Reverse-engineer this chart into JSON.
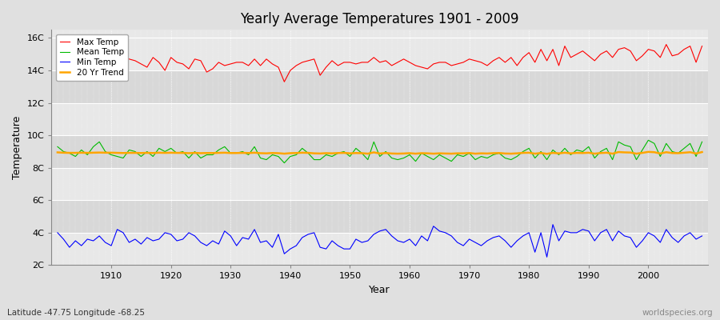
{
  "title": "Yearly Average Temperatures 1901 - 2009",
  "xlabel": "Year",
  "ylabel": "Temperature",
  "footnote_left": "Latitude -47.75 Longitude -68.25",
  "footnote_right": "worldspecies.org",
  "years_start": 1901,
  "years_end": 2009,
  "max_temp": [
    14.8,
    14.4,
    15.3,
    15.0,
    14.6,
    14.5,
    14.5,
    14.3,
    14.6,
    14.9,
    15.3,
    15.0,
    14.7,
    14.6,
    14.4,
    14.2,
    14.8,
    14.5,
    14.0,
    14.8,
    14.5,
    14.4,
    14.1,
    14.7,
    14.6,
    13.9,
    14.1,
    14.5,
    14.3,
    14.4,
    14.5,
    14.5,
    14.3,
    14.7,
    14.3,
    14.7,
    14.4,
    14.2,
    13.3,
    14.0,
    14.3,
    14.5,
    14.6,
    14.7,
    13.7,
    14.2,
    14.6,
    14.3,
    14.5,
    14.5,
    14.4,
    14.5,
    14.5,
    14.8,
    14.5,
    14.6,
    14.3,
    14.5,
    14.7,
    14.5,
    14.3,
    14.2,
    14.1,
    14.4,
    14.5,
    14.5,
    14.3,
    14.4,
    14.5,
    14.7,
    14.6,
    14.5,
    14.3,
    14.6,
    14.8,
    14.5,
    14.8,
    14.3,
    14.8,
    15.1,
    14.5,
    15.3,
    14.6,
    15.3,
    14.3,
    15.5,
    14.8,
    15.0,
    15.2,
    14.9,
    14.6,
    15.0,
    15.2,
    14.8,
    15.3,
    15.4,
    15.2,
    14.6,
    14.9,
    15.3,
    15.2,
    14.8,
    15.6,
    14.9,
    15.0,
    15.3,
    15.5,
    14.5,
    15.5
  ],
  "mean_temp": [
    9.3,
    9.0,
    8.9,
    8.7,
    9.1,
    8.8,
    9.3,
    9.6,
    9.0,
    8.8,
    8.7,
    8.6,
    9.1,
    9.0,
    8.7,
    9.0,
    8.7,
    9.2,
    9.0,
    9.2,
    8.9,
    9.0,
    8.6,
    9.0,
    8.6,
    8.8,
    8.8,
    9.1,
    9.3,
    8.9,
    8.9,
    9.0,
    8.8,
    9.3,
    8.6,
    8.5,
    8.8,
    8.7,
    8.3,
    8.7,
    8.8,
    9.2,
    8.9,
    8.5,
    8.5,
    8.8,
    8.7,
    8.9,
    9.0,
    8.7,
    9.2,
    8.9,
    8.5,
    9.6,
    8.7,
    9.0,
    8.6,
    8.5,
    8.6,
    8.8,
    8.4,
    8.9,
    8.7,
    8.5,
    8.8,
    8.6,
    8.4,
    8.8,
    8.7,
    8.9,
    8.5,
    8.7,
    8.6,
    8.8,
    8.9,
    8.6,
    8.5,
    8.7,
    9.0,
    9.2,
    8.6,
    9.0,
    8.5,
    9.1,
    8.8,
    9.2,
    8.8,
    9.1,
    9.0,
    9.3,
    8.6,
    9.0,
    9.2,
    8.5,
    9.6,
    9.4,
    9.3,
    8.5,
    9.1,
    9.7,
    9.5,
    8.7,
    9.5,
    9.0,
    8.9,
    9.2,
    9.5,
    8.7,
    9.6
  ],
  "min_temp": [
    4.0,
    3.6,
    3.1,
    3.5,
    3.2,
    3.6,
    3.5,
    3.8,
    3.4,
    3.2,
    4.2,
    4.0,
    3.4,
    3.6,
    3.3,
    3.7,
    3.5,
    3.6,
    4.0,
    3.9,
    3.5,
    3.6,
    4.0,
    3.8,
    3.4,
    3.2,
    3.5,
    3.3,
    4.1,
    3.8,
    3.2,
    3.7,
    3.6,
    4.2,
    3.4,
    3.5,
    3.1,
    3.9,
    2.7,
    3.0,
    3.2,
    3.7,
    3.9,
    4.0,
    3.1,
    3.0,
    3.5,
    3.2,
    3.0,
    3.0,
    3.6,
    3.4,
    3.5,
    3.9,
    4.1,
    4.2,
    3.8,
    3.5,
    3.4,
    3.6,
    3.2,
    3.8,
    3.5,
    4.4,
    4.1,
    4.0,
    3.8,
    3.4,
    3.2,
    3.6,
    3.4,
    3.2,
    3.5,
    3.7,
    3.8,
    3.5,
    3.1,
    3.5,
    3.8,
    4.0,
    2.8,
    4.0,
    2.5,
    4.5,
    3.5,
    4.1,
    4.0,
    4.0,
    4.2,
    4.1,
    3.5,
    4.0,
    4.2,
    3.5,
    4.1,
    3.8,
    3.7,
    3.1,
    3.5,
    4.0,
    3.8,
    3.4,
    4.2,
    3.7,
    3.4,
    3.8,
    4.0,
    3.6,
    3.8
  ],
  "trend_values": [
    8.95,
    8.93,
    8.92,
    8.92,
    8.93,
    8.92,
    8.93,
    8.94,
    8.93,
    8.93,
    8.92,
    8.91,
    8.92,
    8.92,
    8.91,
    8.92,
    8.91,
    8.93,
    8.92,
    8.93,
    8.92,
    8.92,
    8.9,
    8.92,
    8.9,
    8.91,
    8.91,
    8.92,
    8.93,
    8.91,
    8.91,
    8.92,
    8.91,
    8.93,
    8.9,
    8.89,
    8.91,
    8.9,
    8.87,
    8.9,
    8.91,
    8.93,
    8.92,
    8.89,
    8.88,
    8.9,
    8.89,
    8.91,
    8.92,
    8.89,
    8.91,
    8.9,
    8.87,
    8.95,
    8.88,
    8.91,
    8.88,
    8.87,
    8.88,
    8.9,
    8.87,
    8.9,
    8.89,
    8.87,
    8.89,
    8.88,
    8.87,
    8.89,
    8.89,
    8.91,
    8.87,
    8.89,
    8.88,
    8.9,
    8.91,
    8.88,
    8.87,
    8.89,
    8.92,
    8.93,
    8.87,
    8.91,
    8.86,
    8.92,
    8.89,
    8.93,
    8.89,
    8.92,
    8.91,
    8.93,
    8.87,
    8.91,
    8.93,
    8.87,
    8.97,
    8.95,
    8.94,
    8.87,
    8.92,
    8.98,
    8.96,
    8.88,
    8.96,
    8.91,
    8.9,
    8.93,
    8.96,
    8.88,
    8.97
  ],
  "max_color": "#ff0000",
  "mean_color": "#00bb00",
  "min_color": "#0000ff",
  "trend_color": "#ffa500",
  "fig_bg_color": "#e0e0e0",
  "plot_bg_color": "#e8e8e8",
  "band_color_light": "#e8e8e8",
  "band_color_dark": "#d8d8d8",
  "grid_color": "#ffffff",
  "yticks": [
    2,
    4,
    6,
    8,
    10,
    12,
    14,
    16
  ],
  "ytick_labels": [
    "2C",
    "4C",
    "6C",
    "8C",
    "10C",
    "12C",
    "14C",
    "16C"
  ],
  "ylim": [
    2,
    16.5
  ],
  "xlim": [
    1900,
    2010
  ]
}
